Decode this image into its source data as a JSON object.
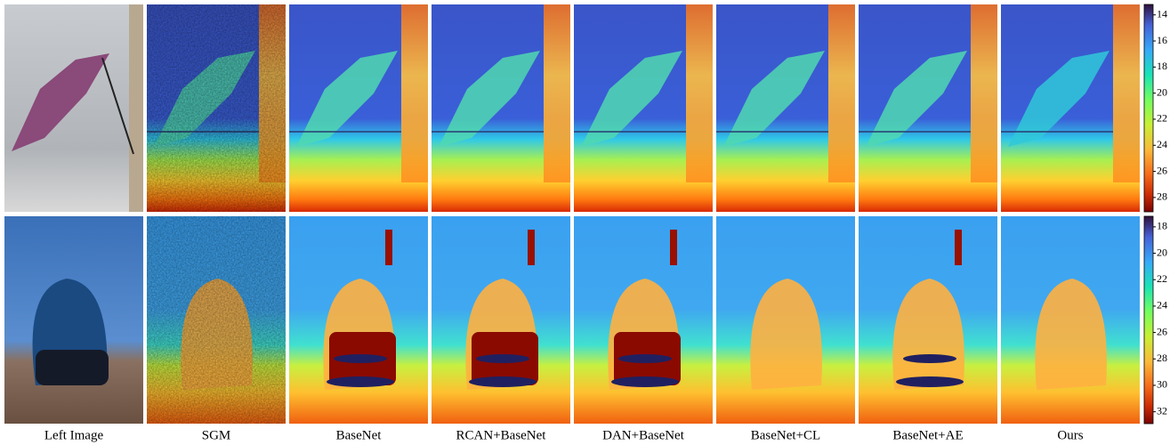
{
  "figure": {
    "columns": [
      "Left Image",
      "SGM",
      "BaseNet",
      "RCAN+BaseNet",
      "DAN+BaseNet",
      "BaseNet+CL",
      "BaseNet+AE",
      "Ours"
    ],
    "colorbars": [
      {
        "lim": [
          13.2,
          29.1
        ],
        "ticks": [
          14,
          16,
          18,
          20,
          22,
          24,
          26,
          28
        ]
      },
      {
        "lim": [
          17.2,
          32.9
        ],
        "ticks": [
          18,
          20,
          22,
          24,
          26,
          28,
          30,
          32
        ]
      }
    ]
  }
}
